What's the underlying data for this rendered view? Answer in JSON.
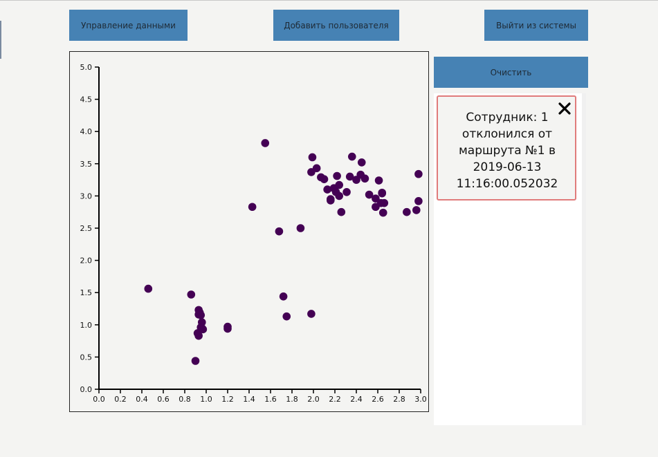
{
  "header": {
    "data_button": "Управление данными",
    "add_user_button": "Добавить пользователя",
    "logout_button": "Выйти из системы"
  },
  "sidebar": {
    "clear_button": "Очистить",
    "alert": {
      "lines": [
        "Сотрудник: 1",
        "отклонился от",
        "маршрута №1 в",
        "2019-06-13",
        "11:16:00.052032"
      ],
      "close_icon": "close-icon"
    }
  },
  "colors": {
    "button": "#4682b4",
    "point": "#440154",
    "alert_border": "#e07b7b"
  },
  "chart_data": {
    "type": "scatter",
    "xlim": [
      0,
      3.0
    ],
    "ylim": [
      0,
      5.0
    ],
    "x_ticks": [
      "0.0",
      "0.2",
      "0.4",
      "0.6",
      "0.8",
      "1.0",
      "1.2",
      "1.4",
      "1.6",
      "1.8",
      "2.0",
      "2.2",
      "2.4",
      "2.6",
      "2.8",
      "3.0"
    ],
    "y_ticks": [
      "0.0",
      "0.5",
      "1.0",
      "1.5",
      "2.0",
      "2.5",
      "3.0",
      "3.5",
      "4.0",
      "4.5",
      "5.0"
    ],
    "series": [
      {
        "color": "#440154",
        "x": [
          0.46,
          0.86,
          0.93,
          0.94,
          0.93,
          0.95,
          0.96,
          0.95,
          0.97,
          0.92,
          0.93,
          0.9,
          0.96,
          1.2,
          1.2,
          1.43,
          1.55,
          1.68,
          1.72,
          1.75,
          1.88,
          1.98,
          1.98,
          1.99,
          2.03,
          2.07,
          2.1,
          2.13,
          2.16,
          2.16,
          2.19,
          2.21,
          2.22,
          2.24,
          2.24,
          2.26,
          2.31,
          2.34,
          2.36,
          2.4,
          2.44,
          2.45,
          2.48,
          2.52,
          2.58,
          2.58,
          2.61,
          2.63,
          2.64,
          2.65,
          2.66,
          2.64,
          2.87,
          2.96,
          2.98,
          2.98
        ],
        "y": [
          1.56,
          1.47,
          1.23,
          1.19,
          1.16,
          1.15,
          1.04,
          0.96,
          0.93,
          0.87,
          0.83,
          0.44,
          0.95,
          0.97,
          0.94,
          2.83,
          3.82,
          2.45,
          1.44,
          1.13,
          2.5,
          3.37,
          1.17,
          3.6,
          3.43,
          3.29,
          3.26,
          3.1,
          2.93,
          2.95,
          3.12,
          3.06,
          3.31,
          3.17,
          3.0,
          2.75,
          3.06,
          3.3,
          3.61,
          3.25,
          3.33,
          3.52,
          3.27,
          3.02,
          2.96,
          2.83,
          3.24,
          2.89,
          3.05,
          2.74,
          2.89,
          3.04,
          2.75,
          2.78,
          3.34,
          2.92
        ]
      }
    ]
  }
}
